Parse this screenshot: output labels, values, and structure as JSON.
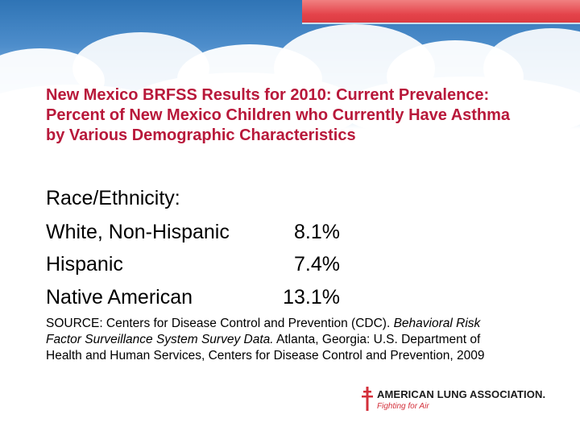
{
  "slide": {
    "title": "New Mexico BRFSS Results for 2010: Current Prevalence: Percent of New Mexico Children who Currently Have Asthma by Various Demographic Characteristics",
    "section_heading": "Race/Ethnicity:",
    "rows": [
      {
        "label": "White, Non-Hispanic",
        "value": "8.1%"
      },
      {
        "label": "Hispanic",
        "value": "7.4%"
      },
      {
        "label": "Native American",
        "value": "13.1%"
      }
    ],
    "source": {
      "prefix": "SOURCE: Centers for Disease Control and Prevention (CDC).",
      "italic": "Behavioral Risk Factor Surveillance System Survey Data.",
      "suffix": "Atlanta, Georgia: U.S. Department of Health and Human Services, Centers for Disease Control and Prevention, 2009"
    }
  },
  "logo": {
    "name": "AMERICAN LUNG ASSOCIATION.",
    "tagline": "Fighting for Air",
    "icon": "lorraine-cross-icon"
  },
  "colors": {
    "title": "#b8183a",
    "accent_bar": "#e4434a",
    "sky": "#4d8dcb"
  }
}
